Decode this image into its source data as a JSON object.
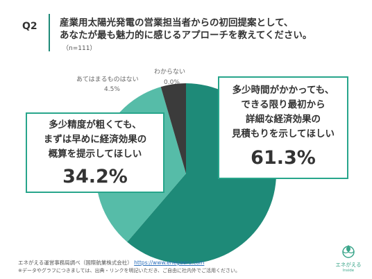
{
  "question": {
    "label": "Q2",
    "title_line1": "産業用太陽光発電の営業担当者からの初回提案として、",
    "title_line2": "あなたが最も魅力的に感じるアプローチを教えてください。",
    "sample": "（n=111）"
  },
  "chart_data": {
    "type": "pie",
    "categories": [
      "多少時間がかかっても、できる限り最初から詳細な経済効果の見積もりを示してほしい",
      "多少精度が粗くても、まずは早めに経済効果の概算を提示してほしい",
      "あてはまるものはない",
      "わからない"
    ],
    "values": [
      61.3,
      34.2,
      4.5,
      0.0
    ],
    "colors": [
      "#1e8a78",
      "#56bca8",
      "#3b3b3b",
      "#cfcfcf"
    ],
    "start_angle_deg": 0,
    "direction": "clockwise"
  },
  "callouts": {
    "right": {
      "lines": [
        "多少時間がかかっても、",
        "できる限り最初から",
        "詳細な経済効果の",
        "見積もりを示してほしい"
      ],
      "pct": "61.3%"
    },
    "left": {
      "lines": [
        "多少精度が粗くても、",
        "まずは早めに経済効果の",
        "概算を提示してほしい"
      ],
      "pct": "34.2%"
    }
  },
  "small_labels": {
    "none_name": "あてはまるものはない",
    "none_pct": "4.5%",
    "dk_name": "わからない",
    "dk_pct": "0.0%"
  },
  "footer": {
    "source": "エネがえる運営事務局調べ（国際航業株式会社）",
    "url": "https://www.enegaeru.com",
    "note": "※データやグラフにつきましては、出典・リンクを明記いただき、ご自由に社内外でご活用ください。"
  },
  "logo": {
    "name_jp": "エネがえる",
    "name_en": "Inside"
  }
}
